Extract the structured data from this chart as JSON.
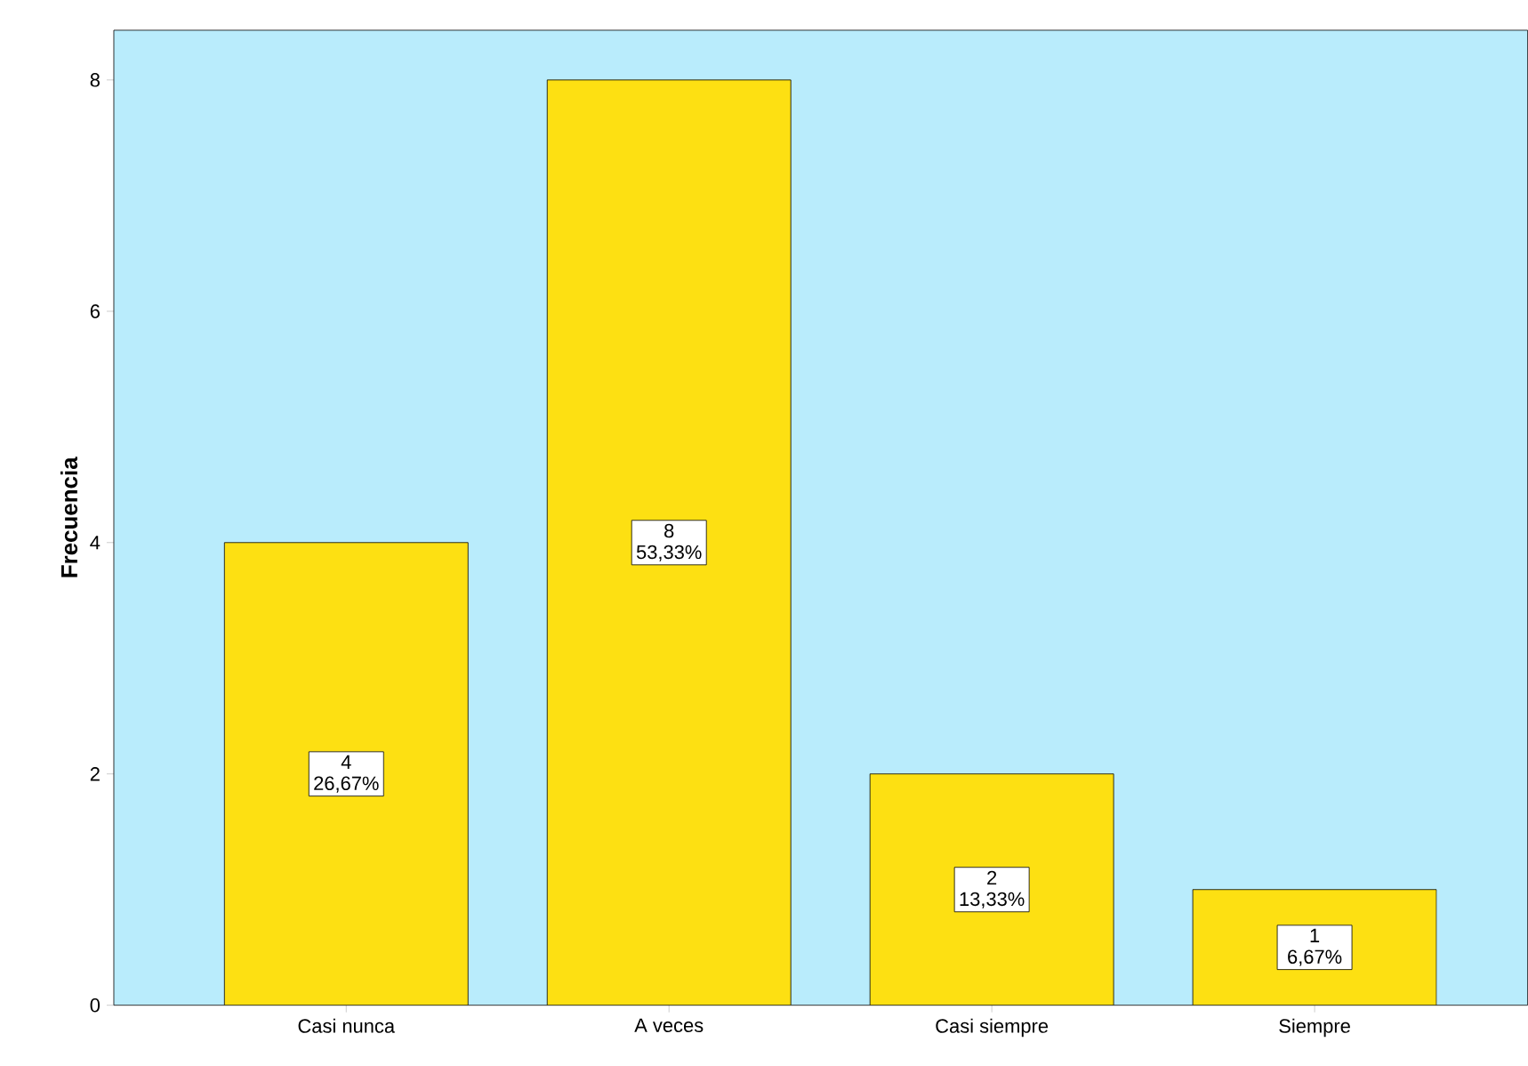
{
  "chart_data": {
    "type": "bar",
    "ylabel": "Frecuencia",
    "categories": [
      "Casi nunca",
      "A veces",
      "Casi siempre",
      "Siempre"
    ],
    "values": [
      4,
      8,
      2,
      1
    ],
    "color": "#fde012",
    "value_labels": [
      "4 26,67%",
      "8 53,33%",
      "2 13,33%",
      "1 6,67%"
    ],
    "ylim": [
      0,
      8.43
    ],
    "yticks": [
      0,
      2,
      4,
      6,
      8
    ],
    "grid": false
  }
}
